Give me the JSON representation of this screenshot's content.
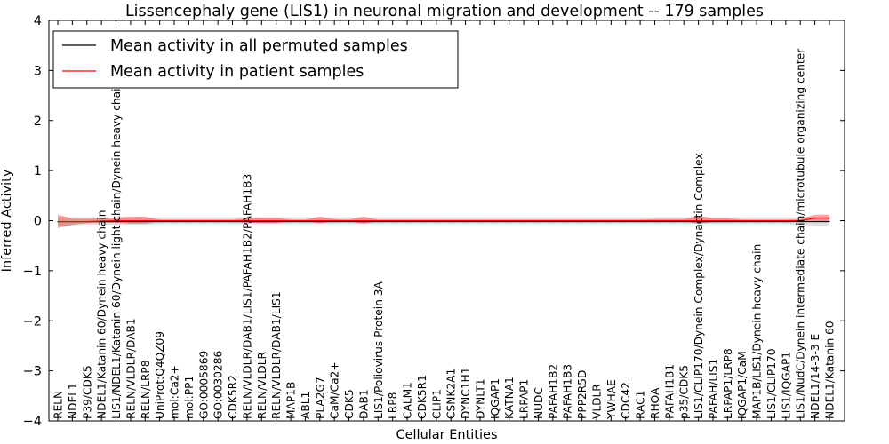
{
  "chart_data": {
    "type": "line",
    "title": "Lissencephaly gene (LIS1) in neuronal migration and development -- 179 samples",
    "xlabel": "Cellular Entities",
    "ylabel": "Inferred Activity",
    "ylim": [
      -4,
      4
    ],
    "yticks": [
      "4",
      "3",
      "2",
      "1",
      "0",
      "−1",
      "−2",
      "−3",
      "−4"
    ],
    "grid": false,
    "legend_position": "top-left",
    "categories": [
      "RELN",
      "NDEL1",
      "P39/CDK5",
      "NDEL1/Katanin 60/Dynein heavy chain",
      "LIS1/NDEL1/Katanin 60/Dynein light chain/Dynein heavy chain",
      "RELN/VLDLR/DAB1",
      "RELN/LRP8",
      "UniProt:Q4QZ09",
      "mol:Ca2+",
      "mol:PP1",
      "GO:0005869",
      "GO:0030286",
      "CDK5R2",
      "RELN/VLDLR/DAB1/LIS1/PAFAH1B2/PAFAH1B3",
      "RELN/VLDLR",
      "RELN/VLDLR/DAB1/LIS1",
      "MAP1B",
      "ABL1",
      "PLA2G7",
      "CaM/Ca2+",
      "CDK5",
      "DAB1",
      "LIS1/Poliovirus Protein 3A",
      "LRP8",
      "CALM1",
      "CDK5R1",
      "CLIP1",
      "CSNK2A1",
      "DYNC1H1",
      "DYNLT1",
      "IQGAP1",
      "KATNA1",
      "LRPAP1",
      "NUDC",
      "PAFAH1B2",
      "PAFAH1B3",
      "PPP2R5D",
      "VLDLR",
      "YWHAE",
      "CDC42",
      "RAC1",
      "RHOA",
      "PAFAH1B1",
      "p35/CDK5",
      "LIS1/CLIP170/Dynein Complex/Dynactin Complex",
      "PAFAH/LIS1",
      "LRPAP1/LRP8",
      "IQGAP1/CaM",
      "MAP1B/LIS1/Dynein heavy chain",
      "LIS1/CLIP170",
      "LIS1/IQGAP1",
      "LIS1/NudC/Dynein intermediate chain/microtubule organizing center",
      "NDEL1/14-3-3 E",
      "NDEL1/Katanin 60"
    ],
    "series": [
      {
        "name": "Mean activity in all permuted samples",
        "color": "#000000",
        "values": [
          -0.02,
          -0.02,
          -0.02,
          -0.02,
          -0.02,
          -0.02,
          -0.02,
          -0.02,
          -0.02,
          -0.02,
          -0.02,
          -0.02,
          -0.02,
          -0.02,
          -0.02,
          -0.02,
          -0.02,
          -0.02,
          -0.02,
          -0.02,
          -0.02,
          -0.02,
          -0.02,
          -0.02,
          -0.02,
          -0.02,
          -0.02,
          -0.02,
          -0.02,
          -0.02,
          -0.02,
          -0.02,
          -0.02,
          -0.02,
          -0.02,
          -0.02,
          -0.02,
          -0.02,
          -0.02,
          -0.02,
          -0.02,
          -0.02,
          -0.02,
          -0.02,
          -0.02,
          -0.02,
          -0.02,
          -0.02,
          -0.02,
          -0.02,
          -0.02,
          -0.02,
          -0.02,
          -0.02
        ],
        "band_lower": [
          -0.12,
          -0.1,
          -0.08,
          -0.08,
          -0.08,
          -0.08,
          -0.08,
          -0.07,
          -0.07,
          -0.07,
          -0.07,
          -0.07,
          -0.07,
          -0.07,
          -0.07,
          -0.07,
          -0.07,
          -0.07,
          -0.07,
          -0.07,
          -0.07,
          -0.07,
          -0.07,
          -0.07,
          -0.07,
          -0.07,
          -0.07,
          -0.07,
          -0.07,
          -0.07,
          -0.07,
          -0.07,
          -0.07,
          -0.07,
          -0.07,
          -0.07,
          -0.07,
          -0.07,
          -0.07,
          -0.07,
          -0.07,
          -0.07,
          -0.07,
          -0.07,
          -0.07,
          -0.07,
          -0.07,
          -0.07,
          -0.07,
          -0.07,
          -0.07,
          -0.08,
          -0.1,
          -0.12
        ],
        "band_upper": [
          0.08,
          0.07,
          0.07,
          0.07,
          0.07,
          0.07,
          0.07,
          0.07,
          0.07,
          0.07,
          0.07,
          0.07,
          0.07,
          0.07,
          0.07,
          0.07,
          0.07,
          0.07,
          0.07,
          0.07,
          0.07,
          0.07,
          0.07,
          0.07,
          0.07,
          0.07,
          0.07,
          0.07,
          0.07,
          0.07,
          0.07,
          0.07,
          0.07,
          0.07,
          0.07,
          0.07,
          0.07,
          0.07,
          0.07,
          0.07,
          0.07,
          0.07,
          0.07,
          0.07,
          0.07,
          0.07,
          0.07,
          0.07,
          0.07,
          0.07,
          0.07,
          0.07,
          0.08,
          0.08
        ]
      },
      {
        "name": "Mean activity in patient samples",
        "color": "#ff0000",
        "values": [
          -0.02,
          -0.02,
          -0.02,
          -0.01,
          0.0,
          0.0,
          0.0,
          0.0,
          0.0,
          0.0,
          0.0,
          0.0,
          0.0,
          0.0,
          0.0,
          0.0,
          0.0,
          0.0,
          0.0,
          0.0,
          0.0,
          0.0,
          0.0,
          0.0,
          0.0,
          0.0,
          0.0,
          0.0,
          0.0,
          0.0,
          0.0,
          0.0,
          0.0,
          0.0,
          0.0,
          0.0,
          0.0,
          0.0,
          0.0,
          0.0,
          0.0,
          0.0,
          0.0,
          0.0,
          0.0,
          0.0,
          0.0,
          0.0,
          0.0,
          0.0,
          0.0,
          0.0,
          0.05,
          0.05
        ],
        "band_lower": [
          -0.15,
          -0.08,
          -0.05,
          -0.04,
          -0.04,
          -0.06,
          -0.06,
          -0.02,
          -0.02,
          -0.02,
          -0.02,
          -0.02,
          -0.02,
          -0.04,
          -0.05,
          -0.05,
          -0.02,
          -0.02,
          -0.05,
          -0.02,
          -0.02,
          -0.06,
          -0.02,
          -0.02,
          -0.02,
          -0.02,
          -0.02,
          -0.02,
          -0.02,
          -0.02,
          -0.02,
          -0.02,
          -0.02,
          -0.02,
          -0.02,
          -0.02,
          -0.02,
          -0.02,
          -0.02,
          -0.02,
          -0.02,
          -0.02,
          -0.02,
          -0.02,
          -0.06,
          -0.03,
          -0.03,
          -0.02,
          -0.02,
          -0.02,
          -0.02,
          -0.02,
          -0.02,
          -0.02
        ],
        "band_upper": [
          0.12,
          0.04,
          0.04,
          0.04,
          0.06,
          0.08,
          0.08,
          0.02,
          0.02,
          0.02,
          0.02,
          0.02,
          0.02,
          0.05,
          0.06,
          0.06,
          0.02,
          0.02,
          0.08,
          0.03,
          0.02,
          0.08,
          0.02,
          0.02,
          0.02,
          0.02,
          0.02,
          0.02,
          0.02,
          0.02,
          0.02,
          0.02,
          0.02,
          0.02,
          0.02,
          0.02,
          0.02,
          0.02,
          0.02,
          0.02,
          0.02,
          0.03,
          0.03,
          0.03,
          0.1,
          0.05,
          0.05,
          0.02,
          0.02,
          0.02,
          0.02,
          0.03,
          0.12,
          0.12
        ]
      }
    ]
  }
}
